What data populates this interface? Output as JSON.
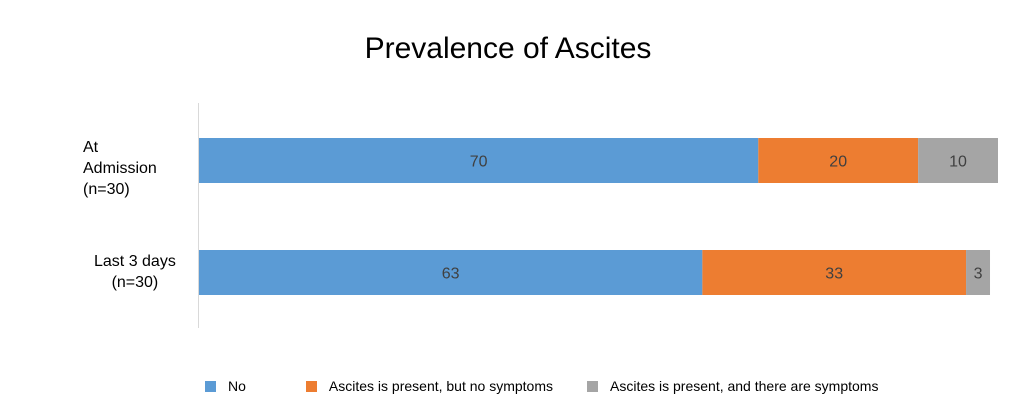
{
  "chart_data": {
    "type": "bar",
    "orientation": "horizontal",
    "stacked": true,
    "title": "Prevalence of Ascites",
    "categories": [
      "At\nAdmission\n(n=30)",
      "Last 3 days\n(n=30)"
    ],
    "series": [
      {
        "name": "No",
        "values": [
          70,
          63
        ],
        "color": "#5b9bd5"
      },
      {
        "name": "Ascites is present, but no symptoms",
        "values": [
          20,
          33
        ],
        "color": "#ed7d31"
      },
      {
        "name": "Ascites is present, and there are symptoms",
        "values": [
          10,
          3
        ],
        "color": "#a5a5a5"
      }
    ],
    "xlim": [
      0,
      100
    ],
    "grid": false,
    "legend_position": "bottom"
  }
}
